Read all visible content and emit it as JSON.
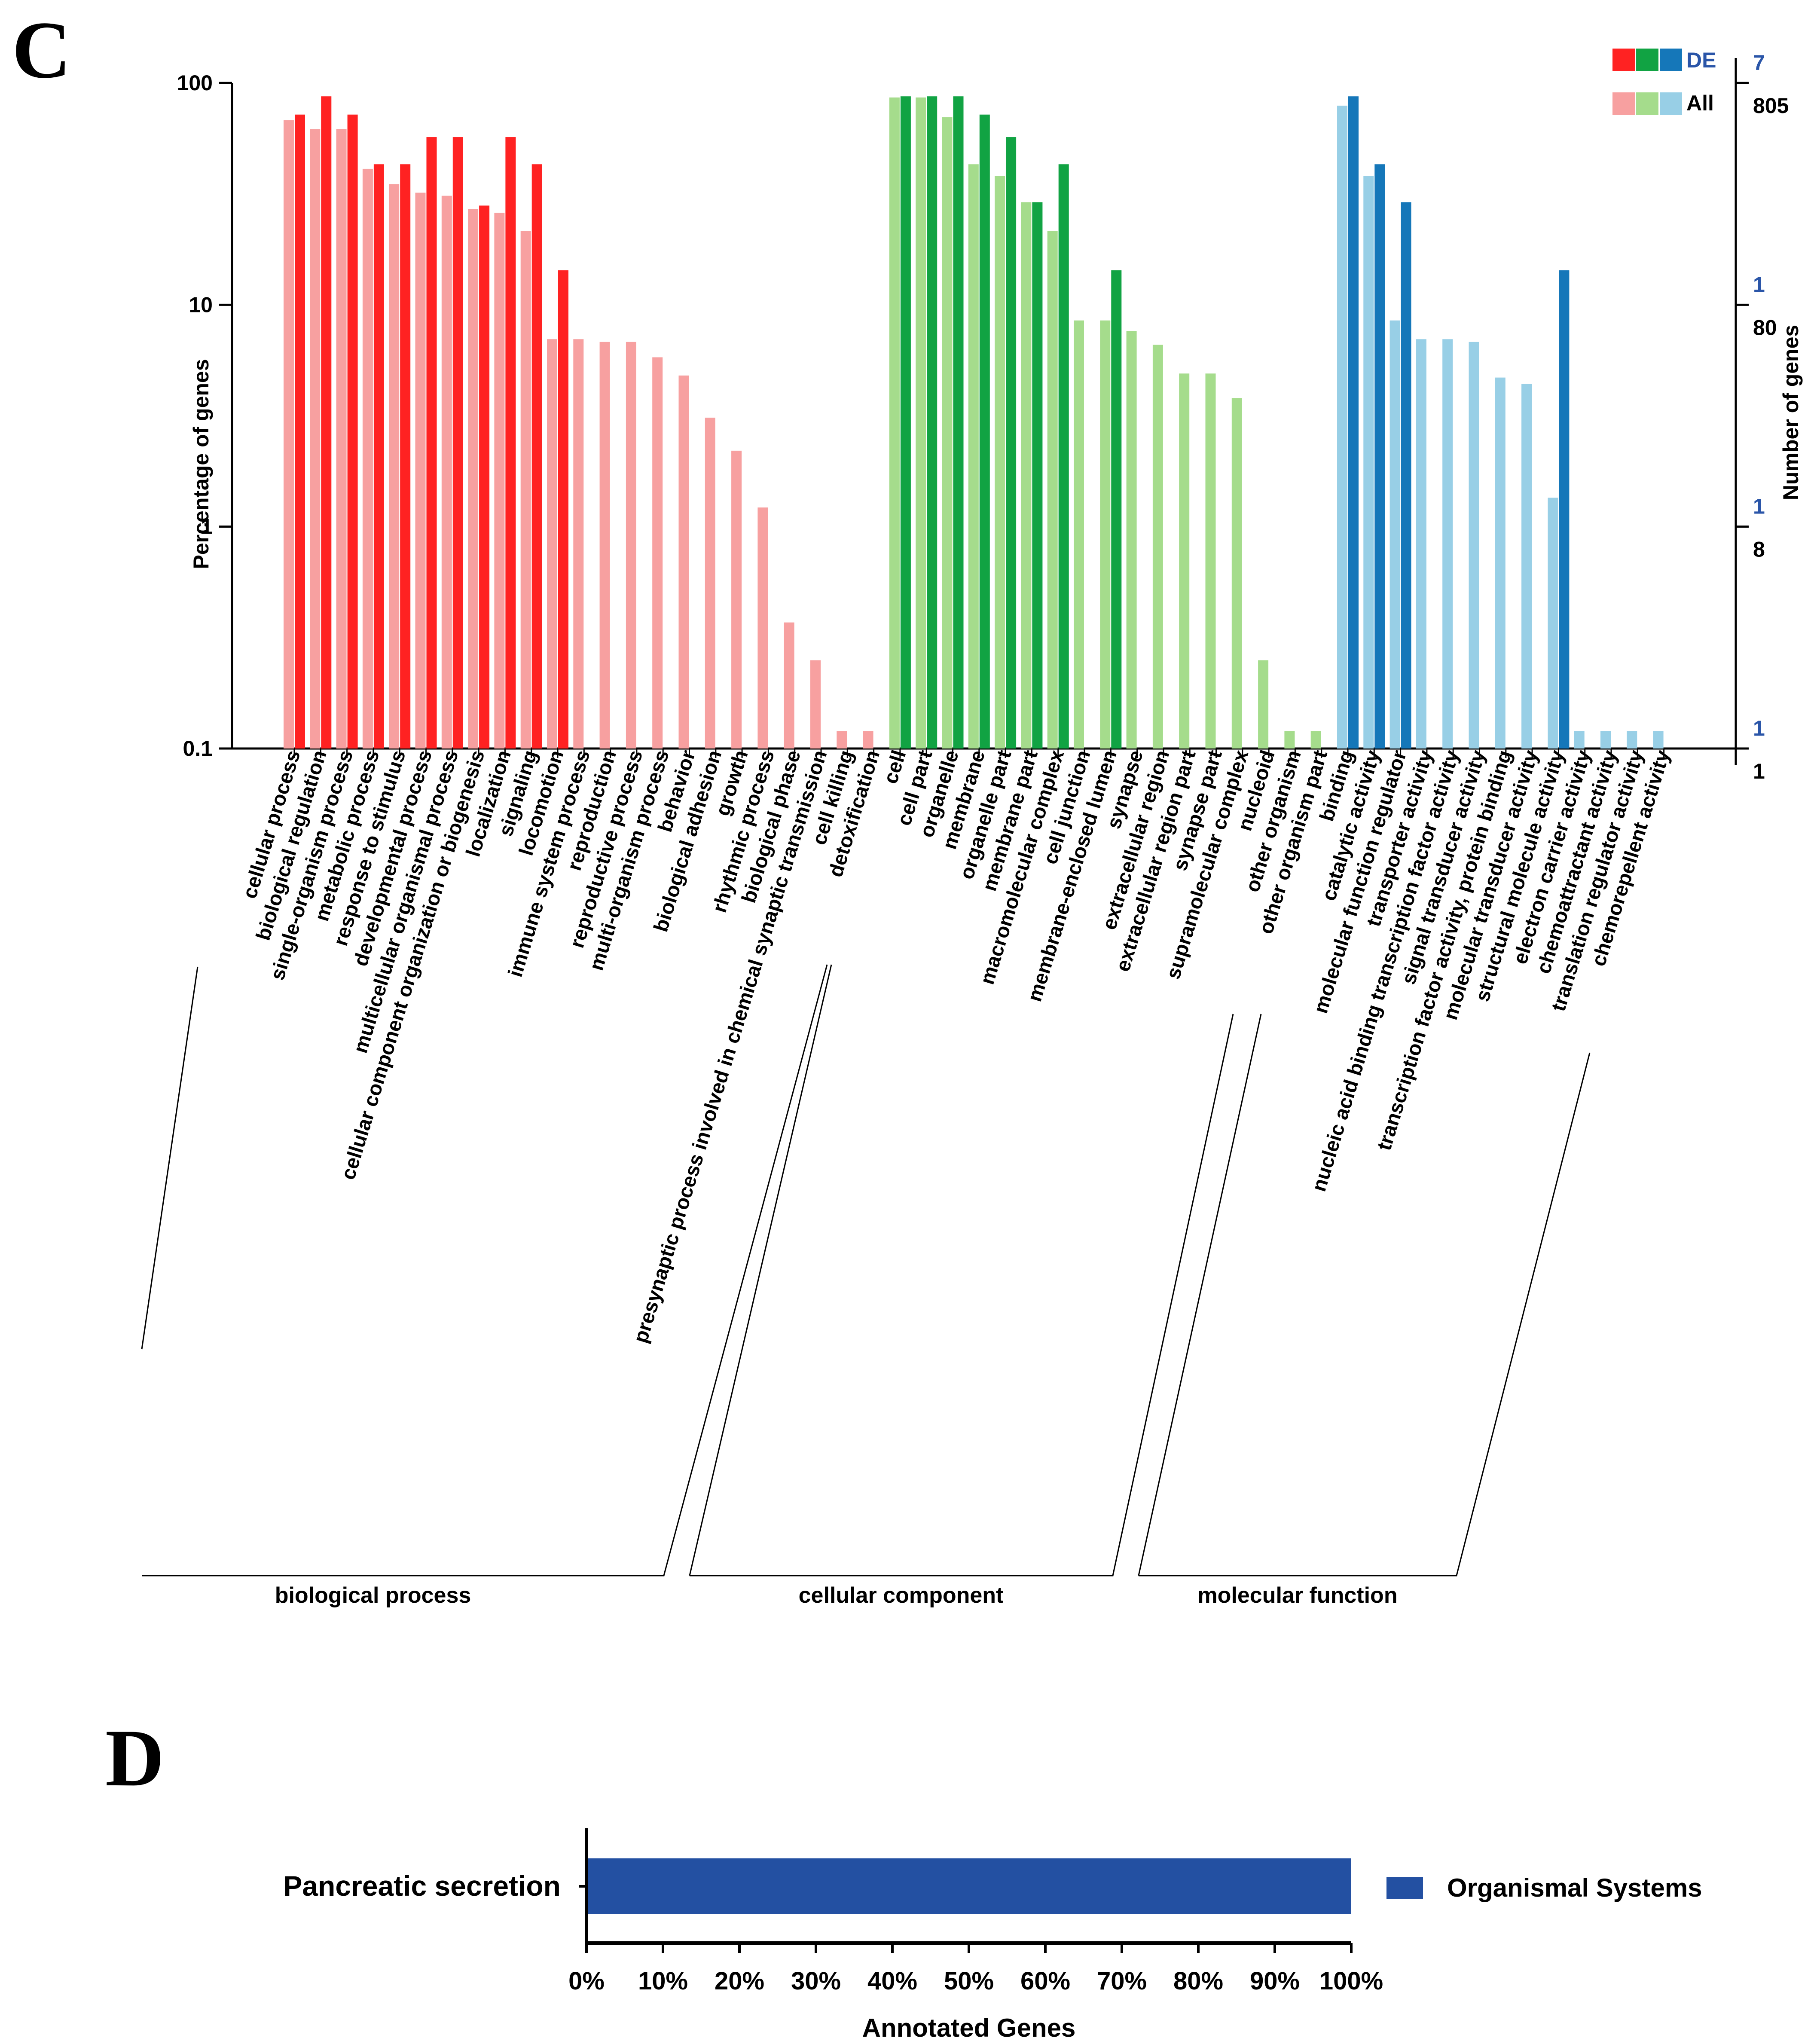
{
  "panel_c": {
    "letter": "C",
    "y_label_left": "Percentage of genes",
    "y_label_right": "Number of genes",
    "left_ticks": [
      "100",
      "10",
      "1",
      "0.1"
    ],
    "right_ticks_de": [
      "7",
      "1",
      "1",
      "1"
    ],
    "right_ticks_all": [
      "805",
      "80",
      "8",
      "1"
    ],
    "legend": {
      "de_label": "DE",
      "all_label": "All"
    },
    "group_labels": [
      "biological process",
      "cellular component",
      "molecular function"
    ]
  },
  "panel_d": {
    "letter": "D",
    "x_title": "Annotated Genes",
    "legend_label": "Organismal Systems"
  },
  "colors": {
    "bp_de": "#ff2222",
    "bp_all": "#f7a0a0",
    "cc_de": "#11a343",
    "cc_all": "#a5dc8c",
    "mf_de": "#1577b9",
    "mf_all": "#98cfe6",
    "kegg_bar": "#2350a2",
    "right_axis_blue": "#2a55a8"
  },
  "chart_data": [
    {
      "type": "bar",
      "title": "",
      "ylabel": "Percentage of genes",
      "y2label": "Number of genes",
      "yscale": "log",
      "ylim": [
        0.1,
        100
      ],
      "series": [
        {
          "name": "All",
          "values": [
            68,
            62,
            62,
            41,
            35,
            32,
            31,
            27,
            26,
            21.5,
            7,
            7,
            6.8,
            6.8,
            5.8,
            4.8,
            3.1,
            2.2,
            1.22,
            0.37,
            0.25,
            0.12,
            0.12,
            86,
            86,
            70,
            43,
            38,
            29,
            21.5,
            8.5,
            8.5,
            7.6,
            6.6,
            4.9,
            4.9,
            3.8,
            0.25,
            0.12,
            0.12,
            79,
            38,
            8.5,
            7,
            7,
            6.8,
            4.7,
            4.4,
            1.35,
            0.12,
            0.12,
            0.12,
            0.12
          ]
        },
        {
          "name": "DE",
          "values": [
            72,
            87,
            72,
            43,
            43,
            57,
            57,
            28,
            57,
            43,
            14.3,
            null,
            null,
            null,
            null,
            null,
            null,
            null,
            null,
            null,
            null,
            null,
            null,
            87,
            87,
            87,
            72,
            57,
            29,
            43,
            null,
            14.3,
            null,
            null,
            null,
            null,
            null,
            null,
            null,
            null,
            87,
            43,
            29,
            null,
            null,
            null,
            null,
            null,
            14.3,
            null,
            null,
            null,
            null
          ]
        }
      ],
      "categories": [
        "cellular process",
        "biological regulation",
        "single-organism process",
        "metabolic process",
        "response to stimulus",
        "developmental process",
        "multicellular organismal process",
        "cellular component organization or biogenesis",
        "localization",
        "signaling",
        "locomotion",
        "immune system process",
        "reproduction",
        "reproductive process",
        "multi-organism process",
        "behavior",
        "biological adhesion",
        "growth",
        "rhythmic process",
        "biological phase",
        "presynaptic process involved in chemical synaptic transmission",
        "cell killing",
        "detoxification",
        "cell",
        "cell part",
        "organelle",
        "membrane",
        "organelle part",
        "membrane part",
        "macromolecular complex",
        "cell junction",
        "membrane-enclosed lumen",
        "synapse",
        "extracellular region",
        "extracellular region part",
        "synapse part",
        "supramolecular complex",
        "nucleoid",
        "other organism",
        "other organism part",
        "binding",
        "catalytic activity",
        "molecular function regulator",
        "transporter activity",
        "nucleic acid binding transcription factor activity",
        "signal transducer activity",
        "transcription factor activity, protein binding",
        "molecular transducer activity",
        "structural molecule activity",
        "electron carrier activity",
        "chemoattractant activity",
        "translation regulator activity",
        "chemorepellent activity"
      ],
      "groups": [
        {
          "name": "biological process",
          "start": 0,
          "end": 22
        },
        {
          "name": "cellular component",
          "start": 23,
          "end": 39
        },
        {
          "name": "molecular function",
          "start": 40,
          "end": 52
        }
      ]
    },
    {
      "type": "bar",
      "orientation": "horizontal",
      "categories": [
        "Pancreatic secretion"
      ],
      "values": [
        100
      ],
      "xlabel": "Annotated Genes",
      "xlim": [
        0,
        100
      ],
      "xticks": [
        "0%",
        "10%",
        "20%",
        "30%",
        "40%",
        "50%",
        "60%",
        "70%",
        "80%",
        "90%",
        "100%"
      ],
      "legend": [
        "Organismal Systems"
      ]
    }
  ]
}
